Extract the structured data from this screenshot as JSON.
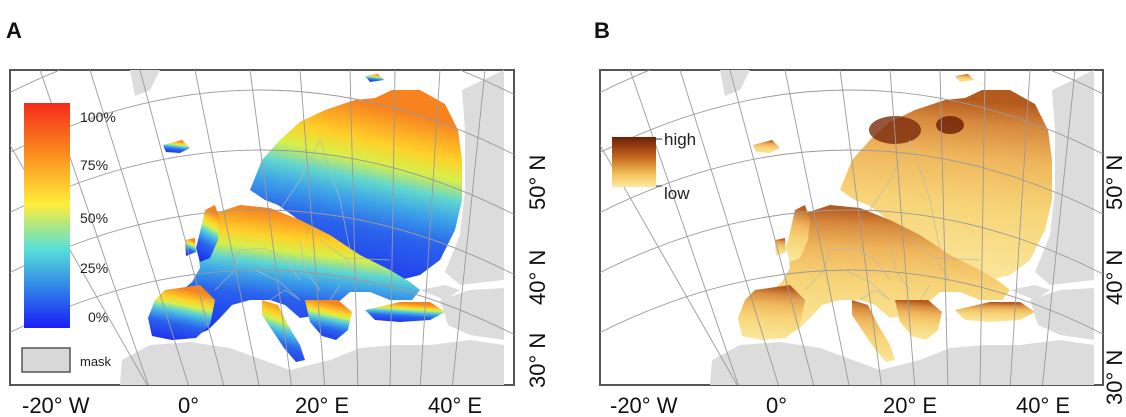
{
  "panels": [
    {
      "letter": "A",
      "legend": {
        "type": "continuous",
        "ticks": [
          "100%",
          "75%",
          "50%",
          "25%",
          "0%"
        ],
        "colors": [
          "#f52a1a",
          "#fb8a1e",
          "#ffee3a",
          "#57e0d7",
          "#2f7fe9",
          "#1a1df5"
        ],
        "mask_label": "mask",
        "mask_color": "#d9d9d9"
      },
      "lon_labels": [
        "-20° W",
        "0°",
        "20° E",
        "40° E"
      ],
      "lat_labels": [
        "50° N",
        "40° N",
        "30° N"
      ]
    },
    {
      "letter": "B",
      "legend": {
        "type": "continuous",
        "high_label": "high",
        "low_label": "low",
        "colors": [
          "#6b1d06",
          "#c4661e",
          "#f2c25a",
          "#fde9a3"
        ]
      },
      "lon_labels": [
        "-20° W",
        "0°",
        "20° E",
        "40° E"
      ],
      "lat_labels": [
        "50° N",
        "40° N",
        "30° N"
      ]
    }
  ]
}
